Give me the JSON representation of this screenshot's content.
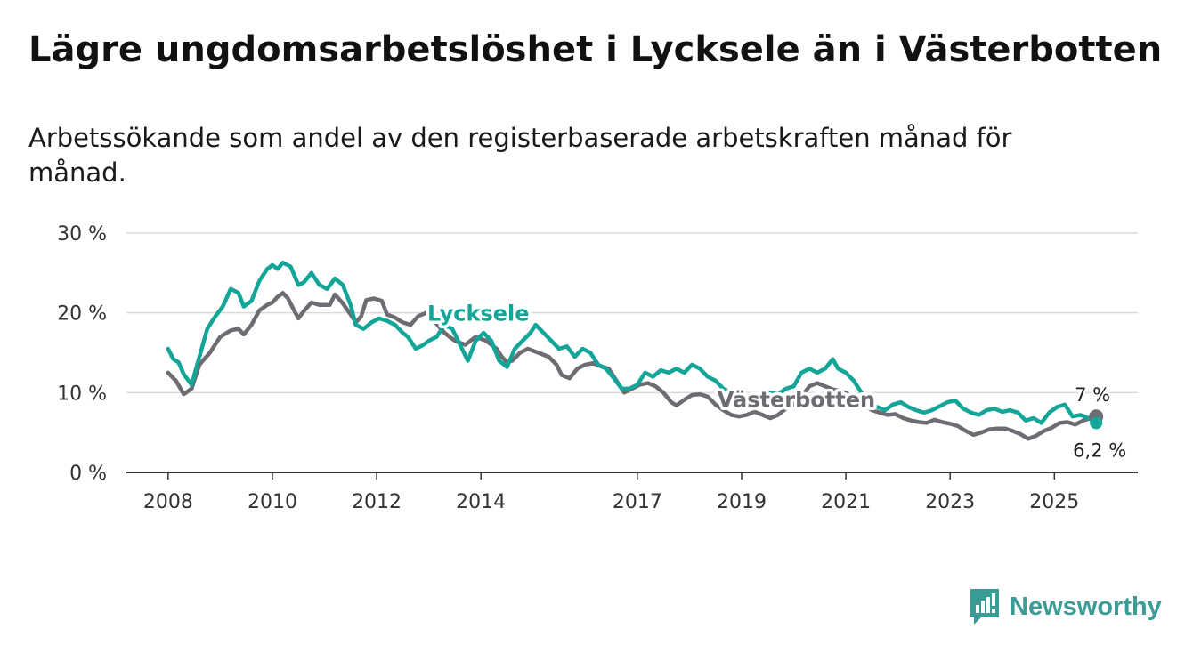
{
  "title": "Lägre ungdomsarbetslöshet i Lycksele än i Västerbotten",
  "subtitle": "Arbetssökande som andel av den registerbaserade arbetskraften månad för månad.",
  "brand": {
    "name": "Newsworthy"
  },
  "colors": {
    "lycksele": "#12a598",
    "vasterbotten": "#6e6b73",
    "grid": "#d9d9d9",
    "axis": "#333333"
  },
  "chart_data": {
    "type": "line",
    "title": "Lägre ungdomsarbetslöshet i Lycksele än i Västerbotten",
    "xlabel": "",
    "ylabel": "",
    "x_range": [
      2007.2,
      2026.6
    ],
    "ylim": [
      0,
      30
    ],
    "y_ticks": [
      {
        "value": 0,
        "label": "0 %"
      },
      {
        "value": 10,
        "label": "10 %"
      },
      {
        "value": 20,
        "label": "20 %"
      },
      {
        "value": 30,
        "label": "30 %"
      }
    ],
    "x_ticks": [
      {
        "value": 2008,
        "label": "2008"
      },
      {
        "value": 2010,
        "label": "2010"
      },
      {
        "value": 2012,
        "label": "2012"
      },
      {
        "value": 2014,
        "label": "2014"
      },
      {
        "value": 2017,
        "label": "2017"
      },
      {
        "value": 2019,
        "label": "2019"
      },
      {
        "value": 2021,
        "label": "2021"
      },
      {
        "value": 2023,
        "label": "2023"
      },
      {
        "value": 2025,
        "label": "2025"
      }
    ],
    "grid": true,
    "series": [
      {
        "name": "Västerbotten",
        "label": "Västerbotten",
        "end_label": "7 %",
        "points": [
          [
            2008.0,
            12.5
          ],
          [
            2008.15,
            11.5
          ],
          [
            2008.3,
            9.8
          ],
          [
            2008.45,
            10.5
          ],
          [
            2008.6,
            13.5
          ],
          [
            2008.8,
            15.0
          ],
          [
            2009.0,
            17.0
          ],
          [
            2009.2,
            17.8
          ],
          [
            2009.35,
            18.0
          ],
          [
            2009.45,
            17.3
          ],
          [
            2009.6,
            18.5
          ],
          [
            2009.75,
            20.3
          ],
          [
            2009.9,
            21.0
          ],
          [
            2010.0,
            21.3
          ],
          [
            2010.1,
            22.0
          ],
          [
            2010.2,
            22.5
          ],
          [
            2010.3,
            21.8
          ],
          [
            2010.4,
            20.5
          ],
          [
            2010.5,
            19.3
          ],
          [
            2010.6,
            20.2
          ],
          [
            2010.75,
            21.3
          ],
          [
            2010.9,
            21.0
          ],
          [
            2011.1,
            21.0
          ],
          [
            2011.2,
            22.3
          ],
          [
            2011.35,
            21.2
          ],
          [
            2011.5,
            19.8
          ],
          [
            2011.6,
            18.8
          ],
          [
            2011.7,
            19.5
          ],
          [
            2011.8,
            21.6
          ],
          [
            2011.95,
            21.8
          ],
          [
            2012.1,
            21.5
          ],
          [
            2012.2,
            19.8
          ],
          [
            2012.35,
            19.4
          ],
          [
            2012.5,
            18.8
          ],
          [
            2012.65,
            18.5
          ],
          [
            2012.8,
            19.6
          ],
          [
            2012.95,
            20.0
          ],
          [
            2013.1,
            19.0
          ],
          [
            2013.3,
            17.5
          ],
          [
            2013.5,
            16.5
          ],
          [
            2013.7,
            16.0
          ],
          [
            2013.9,
            17.0
          ],
          [
            2014.1,
            16.5
          ],
          [
            2014.3,
            15.5
          ],
          [
            2014.4,
            14.5
          ],
          [
            2014.5,
            13.8
          ],
          [
            2014.6,
            14.0
          ],
          [
            2014.75,
            15.0
          ],
          [
            2014.9,
            15.5
          ],
          [
            2015.1,
            15.0
          ],
          [
            2015.3,
            14.5
          ],
          [
            2015.45,
            13.5
          ],
          [
            2015.55,
            12.2
          ],
          [
            2015.7,
            11.8
          ],
          [
            2015.85,
            13.0
          ],
          [
            2016.0,
            13.5
          ],
          [
            2016.15,
            13.7
          ],
          [
            2016.3,
            13.3
          ],
          [
            2016.45,
            13.0
          ],
          [
            2016.6,
            11.5
          ],
          [
            2016.75,
            10.0
          ],
          [
            2016.9,
            10.5
          ],
          [
            2017.05,
            11.0
          ],
          [
            2017.2,
            11.2
          ],
          [
            2017.35,
            10.8
          ],
          [
            2017.5,
            10.0
          ],
          [
            2017.65,
            8.8
          ],
          [
            2017.75,
            8.4
          ],
          [
            2017.9,
            9.1
          ],
          [
            2018.05,
            9.7
          ],
          [
            2018.2,
            9.8
          ],
          [
            2018.35,
            9.5
          ],
          [
            2018.5,
            8.5
          ],
          [
            2018.65,
            7.8
          ],
          [
            2018.8,
            7.2
          ],
          [
            2018.95,
            7.0
          ],
          [
            2019.1,
            7.2
          ],
          [
            2019.25,
            7.6
          ],
          [
            2019.4,
            7.2
          ],
          [
            2019.55,
            6.8
          ],
          [
            2019.7,
            7.2
          ],
          [
            2019.85,
            8.0
          ],
          [
            2020.0,
            8.5
          ],
          [
            2020.15,
            9.5
          ],
          [
            2020.3,
            10.8
          ],
          [
            2020.45,
            11.2
          ],
          [
            2020.6,
            10.8
          ],
          [
            2020.75,
            10.4
          ],
          [
            2020.9,
            10.2
          ],
          [
            2021.05,
            9.8
          ],
          [
            2021.2,
            9.2
          ],
          [
            2021.35,
            8.5
          ],
          [
            2021.5,
            7.8
          ],
          [
            2021.65,
            7.5
          ],
          [
            2021.8,
            7.2
          ],
          [
            2021.95,
            7.3
          ],
          [
            2022.1,
            6.8
          ],
          [
            2022.25,
            6.5
          ],
          [
            2022.4,
            6.3
          ],
          [
            2022.55,
            6.2
          ],
          [
            2022.7,
            6.6
          ],
          [
            2022.85,
            6.3
          ],
          [
            2023.0,
            6.1
          ],
          [
            2023.15,
            5.8
          ],
          [
            2023.3,
            5.2
          ],
          [
            2023.45,
            4.7
          ],
          [
            2023.6,
            5.0
          ],
          [
            2023.75,
            5.4
          ],
          [
            2023.9,
            5.5
          ],
          [
            2024.05,
            5.5
          ],
          [
            2024.2,
            5.2
          ],
          [
            2024.35,
            4.8
          ],
          [
            2024.5,
            4.2
          ],
          [
            2024.65,
            4.6
          ],
          [
            2024.8,
            5.2
          ],
          [
            2024.95,
            5.6
          ],
          [
            2025.1,
            6.2
          ],
          [
            2025.25,
            6.3
          ],
          [
            2025.4,
            6.0
          ],
          [
            2025.55,
            6.5
          ],
          [
            2025.7,
            6.8
          ],
          [
            2025.8,
            7.0
          ]
        ]
      },
      {
        "name": "Lycksele",
        "label": "Lycksele",
        "end_label": "6,2 %",
        "points": [
          [
            2008.0,
            15.5
          ],
          [
            2008.1,
            14.2
          ],
          [
            2008.2,
            13.8
          ],
          [
            2008.3,
            12.3
          ],
          [
            2008.45,
            11.0
          ],
          [
            2008.6,
            14.5
          ],
          [
            2008.75,
            18.0
          ],
          [
            2008.9,
            19.5
          ],
          [
            2009.05,
            20.8
          ],
          [
            2009.2,
            23.0
          ],
          [
            2009.35,
            22.5
          ],
          [
            2009.45,
            20.8
          ],
          [
            2009.6,
            21.5
          ],
          [
            2009.75,
            24.0
          ],
          [
            2009.9,
            25.5
          ],
          [
            2010.0,
            26.0
          ],
          [
            2010.1,
            25.5
          ],
          [
            2010.2,
            26.3
          ],
          [
            2010.35,
            25.8
          ],
          [
            2010.5,
            23.5
          ],
          [
            2010.6,
            23.8
          ],
          [
            2010.75,
            25.0
          ],
          [
            2010.9,
            23.5
          ],
          [
            2011.05,
            23.0
          ],
          [
            2011.2,
            24.3
          ],
          [
            2011.35,
            23.5
          ],
          [
            2011.5,
            21.0
          ],
          [
            2011.6,
            18.5
          ],
          [
            2011.75,
            18.0
          ],
          [
            2011.9,
            18.8
          ],
          [
            2012.05,
            19.3
          ],
          [
            2012.2,
            19.0
          ],
          [
            2012.35,
            18.5
          ],
          [
            2012.5,
            17.5
          ],
          [
            2012.6,
            17.0
          ],
          [
            2012.75,
            15.5
          ],
          [
            2012.9,
            16.0
          ],
          [
            2013.0,
            16.5
          ],
          [
            2013.15,
            17.0
          ],
          [
            2013.3,
            18.5
          ],
          [
            2013.45,
            18.0
          ],
          [
            2013.6,
            16.0
          ],
          [
            2013.75,
            14.0
          ],
          [
            2013.9,
            16.5
          ],
          [
            2014.05,
            17.5
          ],
          [
            2014.2,
            16.5
          ],
          [
            2014.35,
            14.0
          ],
          [
            2014.5,
            13.2
          ],
          [
            2014.65,
            15.5
          ],
          [
            2014.8,
            16.5
          ],
          [
            2014.95,
            17.5
          ],
          [
            2015.05,
            18.5
          ],
          [
            2015.2,
            17.5
          ],
          [
            2015.35,
            16.5
          ],
          [
            2015.5,
            15.5
          ],
          [
            2015.65,
            15.8
          ],
          [
            2015.8,
            14.5
          ],
          [
            2015.95,
            15.5
          ],
          [
            2016.1,
            15.0
          ],
          [
            2016.25,
            13.5
          ],
          [
            2016.4,
            13.0
          ],
          [
            2016.55,
            11.8
          ],
          [
            2016.7,
            10.5
          ],
          [
            2016.85,
            10.5
          ],
          [
            2017.0,
            11.0
          ],
          [
            2017.15,
            12.5
          ],
          [
            2017.3,
            12.0
          ],
          [
            2017.45,
            12.8
          ],
          [
            2017.6,
            12.5
          ],
          [
            2017.75,
            13.0
          ],
          [
            2017.9,
            12.5
          ],
          [
            2018.05,
            13.5
          ],
          [
            2018.2,
            13.0
          ],
          [
            2018.35,
            12.0
          ],
          [
            2018.5,
            11.5
          ],
          [
            2018.65,
            10.5
          ],
          [
            2018.8,
            10.0
          ],
          [
            2018.95,
            9.8
          ],
          [
            2019.1,
            9.5
          ],
          [
            2019.25,
            9.0
          ],
          [
            2019.4,
            9.5
          ],
          [
            2019.55,
            10.0
          ],
          [
            2019.7,
            9.8
          ],
          [
            2019.85,
            10.5
          ],
          [
            2020.0,
            10.8
          ],
          [
            2020.15,
            12.5
          ],
          [
            2020.3,
            13.0
          ],
          [
            2020.45,
            12.5
          ],
          [
            2020.6,
            13.0
          ],
          [
            2020.75,
            14.2
          ],
          [
            2020.85,
            13.0
          ],
          [
            2021.0,
            12.5
          ],
          [
            2021.15,
            11.5
          ],
          [
            2021.3,
            10.0
          ],
          [
            2021.45,
            8.5
          ],
          [
            2021.6,
            8.2
          ],
          [
            2021.75,
            7.8
          ],
          [
            2021.9,
            8.5
          ],
          [
            2022.05,
            8.8
          ],
          [
            2022.2,
            8.2
          ],
          [
            2022.35,
            7.8
          ],
          [
            2022.5,
            7.5
          ],
          [
            2022.65,
            7.8
          ],
          [
            2022.8,
            8.3
          ],
          [
            2022.95,
            8.8
          ],
          [
            2023.1,
            9.0
          ],
          [
            2023.25,
            8.0
          ],
          [
            2023.4,
            7.5
          ],
          [
            2023.55,
            7.2
          ],
          [
            2023.7,
            7.8
          ],
          [
            2023.85,
            8.0
          ],
          [
            2024.0,
            7.6
          ],
          [
            2024.15,
            7.8
          ],
          [
            2024.3,
            7.5
          ],
          [
            2024.45,
            6.5
          ],
          [
            2024.6,
            6.8
          ],
          [
            2024.75,
            6.2
          ],
          [
            2024.9,
            7.5
          ],
          [
            2025.05,
            8.2
          ],
          [
            2025.2,
            8.5
          ],
          [
            2025.35,
            7.0
          ],
          [
            2025.5,
            7.2
          ],
          [
            2025.65,
            6.8
          ],
          [
            2025.8,
            6.2
          ]
        ]
      }
    ]
  }
}
